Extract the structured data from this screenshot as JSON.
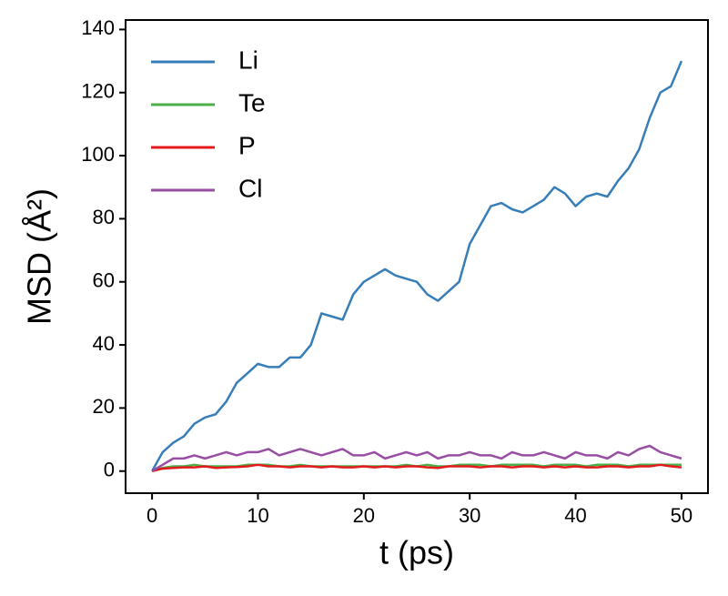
{
  "chart_data": {
    "type": "line",
    "xlabel": "t (ps)",
    "ylabel": "MSD (Å²)",
    "x": [
      0,
      1,
      2,
      3,
      4,
      5,
      6,
      7,
      8,
      9,
      10,
      11,
      12,
      13,
      14,
      15,
      16,
      17,
      18,
      19,
      20,
      21,
      22,
      23,
      24,
      25,
      26,
      27,
      28,
      29,
      30,
      31,
      32,
      33,
      34,
      35,
      36,
      37,
      38,
      39,
      40,
      41,
      42,
      43,
      44,
      45,
      46,
      47,
      48,
      49,
      50
    ],
    "series": [
      {
        "name": "Li",
        "color": "#377eb8",
        "values": [
          0,
          6,
          9,
          11,
          15,
          17,
          18,
          22,
          28,
          31,
          34,
          33,
          33,
          36,
          36,
          40,
          50,
          49,
          48,
          56,
          60,
          62,
          64,
          62,
          61,
          60,
          56,
          54,
          57,
          60,
          72,
          78,
          84,
          85,
          83,
          82,
          84,
          86,
          90,
          88,
          84,
          87,
          88,
          87,
          92,
          96,
          102,
          112,
          120,
          122,
          130
        ]
      },
      {
        "name": "Te",
        "color": "#4daf4a",
        "values": [
          0,
          1,
          1.5,
          1.5,
          2,
          1.5,
          1.5,
          1.5,
          1.5,
          2,
          2,
          2,
          1.5,
          1.5,
          2,
          1.5,
          1.5,
          1.5,
          1.5,
          1.5,
          1.5,
          1.5,
          1.5,
          1.5,
          2,
          1.5,
          2,
          1.5,
          1.5,
          2,
          2,
          2,
          1.5,
          2,
          2,
          2,
          2,
          1.5,
          2,
          2,
          2,
          1.5,
          2,
          2,
          2,
          1.5,
          2,
          2,
          2,
          2,
          2
        ]
      },
      {
        "name": "P",
        "color": "#e41a1c",
        "values": [
          0,
          0.8,
          1,
          1.2,
          1.2,
          1.5,
          1,
          1.2,
          1.3,
          1.5,
          2,
          1.5,
          1.5,
          1.2,
          1.5,
          1.5,
          1.2,
          1.5,
          1.2,
          1.2,
          1.5,
          1.2,
          1.5,
          1.2,
          1.5,
          1.5,
          1.2,
          1,
          1.5,
          1.5,
          1.5,
          1.2,
          1.5,
          1.5,
          1.2,
          1.5,
          1.5,
          1.2,
          1.5,
          1.2,
          1.5,
          1.2,
          1.2,
          1.5,
          1.5,
          1.2,
          1.5,
          1.5,
          2,
          1.5,
          1.2
        ]
      },
      {
        "name": "Cl",
        "color": "#984ea3",
        "values": [
          0,
          2,
          4,
          4,
          5,
          4,
          5,
          6,
          5,
          6,
          6,
          7,
          5,
          6,
          7,
          6,
          5,
          6,
          7,
          5,
          5,
          6,
          4,
          5,
          6,
          5,
          6,
          4,
          5,
          5,
          6,
          5,
          5,
          4,
          6,
          5,
          5,
          6,
          5,
          4,
          6,
          5,
          5,
          4,
          6,
          5,
          7,
          8,
          6,
          5,
          4
        ]
      }
    ],
    "xlim": [
      -2.5,
      52.5
    ],
    "xticks": [
      0,
      10,
      20,
      30,
      40,
      50
    ],
    "ylim": [
      -7,
      143
    ],
    "yticks": [
      0,
      20,
      40,
      60,
      80,
      100,
      120,
      140
    ],
    "legend": "upper-left"
  }
}
